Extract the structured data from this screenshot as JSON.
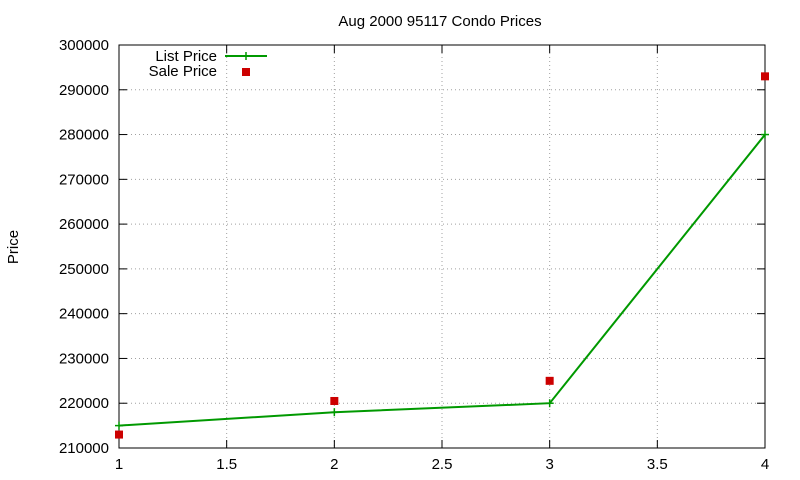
{
  "chart_data": {
    "type": "line",
    "title": "Aug 2000 95117 Condo Prices",
    "xlabel": "",
    "ylabel": "Price",
    "xlim": [
      1,
      4
    ],
    "ylim": [
      210000,
      300000
    ],
    "x_ticks": [
      1,
      1.5,
      2,
      2.5,
      3,
      3.5,
      4
    ],
    "x_tick_labels": [
      "1",
      "1.5",
      "2",
      "2.5",
      "3",
      "3.5",
      "4"
    ],
    "y_ticks": [
      210000,
      220000,
      230000,
      240000,
      250000,
      260000,
      270000,
      280000,
      290000,
      300000
    ],
    "y_tick_labels": [
      "210000",
      "220000",
      "230000",
      "240000",
      "250000",
      "260000",
      "270000",
      "280000",
      "290000",
      "300000"
    ],
    "grid": true,
    "legend_position": "top-left",
    "series": [
      {
        "name": "List Price",
        "kind": "line-with-plus-markers",
        "color": "#009900",
        "x": [
          1,
          2,
          3,
          4
        ],
        "values": [
          215000,
          218000,
          220000,
          280000
        ]
      },
      {
        "name": "Sale Price",
        "kind": "square-markers",
        "color": "#cc0000",
        "x": [
          1,
          2,
          3,
          4
        ],
        "values": [
          213000,
          220500,
          225000,
          293000
        ]
      }
    ]
  }
}
